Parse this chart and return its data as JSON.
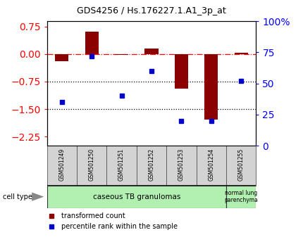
{
  "title": "GDS4256 / Hs.176227.1.A1_3p_at",
  "samples": [
    "GSM501249",
    "GSM501250",
    "GSM501251",
    "GSM501252",
    "GSM501253",
    "GSM501254",
    "GSM501255"
  ],
  "bar_values": [
    -0.2,
    0.62,
    -0.02,
    0.15,
    -0.95,
    -1.78,
    0.03
  ],
  "dot_values": [
    35,
    72,
    40,
    60,
    20,
    20,
    52
  ],
  "bar_color": "#8B0000",
  "dot_color": "#0000CC",
  "left_ylim": [
    -2.5,
    0.9
  ],
  "right_ylim": [
    0,
    100
  ],
  "left_yticks": [
    0.75,
    0,
    -0.75,
    -1.5,
    -2.25
  ],
  "right_yticks": [
    100,
    75,
    50,
    25,
    0
  ],
  "dotted_lines": [
    -0.75,
    -1.5
  ],
  "group1_label": "caseous TB granulomas",
  "group2_label": "normal lung\nparenchyma",
  "group1_color": "#b2f0b2",
  "group2_color": "#b2f0b2",
  "cell_type_label": "cell type",
  "legend1_label": "transformed count",
  "legend2_label": "percentile rank within the sample",
  "bar_width": 0.45,
  "bg_color": "#ffffff"
}
